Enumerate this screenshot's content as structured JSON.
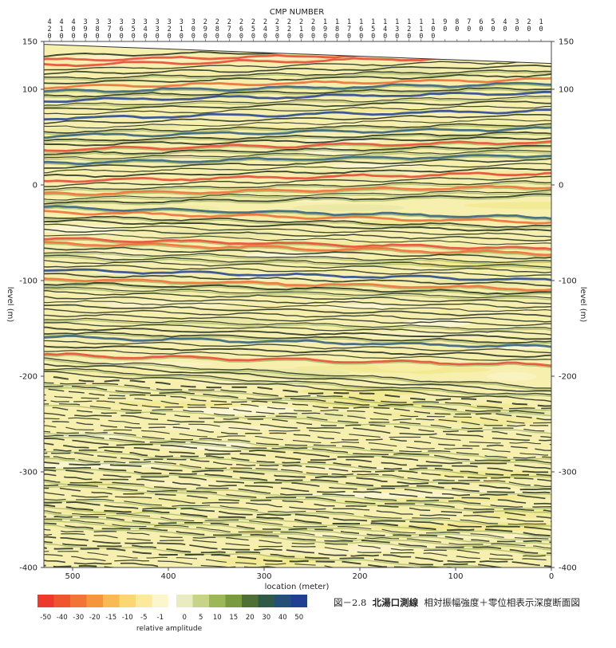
{
  "chart_data": {
    "type": "heatmap",
    "top_axis_title": "CMP NUMBER",
    "cmp_ticks": [
      "420",
      "410",
      "400",
      "390",
      "380",
      "370",
      "360",
      "350",
      "340",
      "330",
      "320",
      "310",
      "300",
      "290",
      "280",
      "270",
      "260",
      "250",
      "240",
      "230",
      "220",
      "210",
      "200",
      "190",
      "180",
      "170",
      "160",
      "150",
      "140",
      "130",
      "120",
      "110",
      "100",
      "90",
      "80",
      "70",
      "60",
      "50",
      "40",
      "30",
      "20",
      "10"
    ],
    "xlabel": "location (meter)",
    "ylabel": "level (m)",
    "xlim": [
      530,
      0
    ],
    "ylim": [
      -400,
      150
    ],
    "x_ticks": [
      "500",
      "400",
      "300",
      "200",
      "100",
      "0"
    ],
    "x_tick_values": [
      500,
      400,
      300,
      200,
      100,
      0
    ],
    "y_ticks": [
      "150",
      "100",
      "0",
      "-100",
      "-200",
      "-300",
      "-400"
    ],
    "y_tick_values": [
      150,
      100,
      0,
      -100,
      -200,
      -300,
      -400
    ],
    "surface_level": {
      "x": [
        530,
        0
      ],
      "y": [
        147,
        127
      ]
    },
    "colorbar": {
      "label": "relative amplitude",
      "tick_labels": [
        "-50",
        "-40",
        "-30",
        "-20",
        "-15",
        "-10",
        "-5",
        "-1",
        "0",
        "5",
        "10",
        "15",
        "20",
        "30",
        "40",
        "50"
      ],
      "colors": [
        "#ec3a2e",
        "#ef5630",
        "#f27436",
        "#f5963d",
        "#f8ba52",
        "#fbd774",
        "#fce99c",
        "#fcf6cd",
        "#e8ecbe",
        "#c6d388",
        "#9db658",
        "#7a9a3f",
        "#4f7035",
        "#2f5a45",
        "#244f78",
        "#1e3f92"
      ]
    }
  },
  "caption": {
    "figure_number": "図－2.8",
    "title": "北湯口測線",
    "description": "相対振幅強度＋零位相表示深度断面図"
  }
}
